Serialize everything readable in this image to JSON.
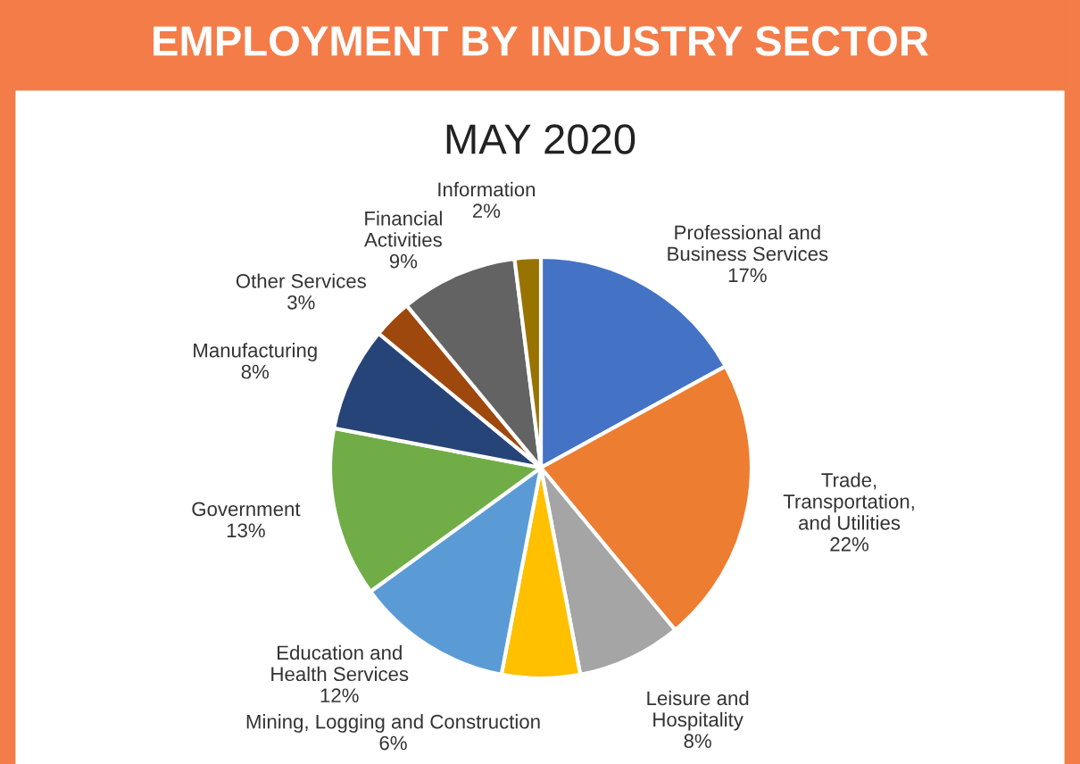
{
  "chart_data": {
    "type": "pie",
    "title": "EMPLOYMENT BY INDUSTRY SECTOR",
    "subtitle": "MAY 2020",
    "categories": [
      "Professional and\nBusiness Services",
      "Trade,\nTransportation,\nand Utilities",
      "Leisure and\nHospitality",
      "Mining, Logging and Construction",
      "Education and\nHealth Services",
      "Government",
      "Manufacturing",
      "Other Services",
      "Financial\nActivities",
      "Information"
    ],
    "values": [
      17,
      22,
      8,
      6,
      12,
      13,
      8,
      3,
      9,
      2
    ],
    "colors": [
      "#4472c4",
      "#ed7d31",
      "#a5a5a5",
      "#ffc000",
      "#5b9bd5",
      "#70ad47",
      "#264478",
      "#9e480e",
      "#636363",
      "#997300"
    ],
    "value_labels": [
      "17%",
      "22%",
      "8%",
      "6%",
      "12%",
      "13%",
      "8%",
      "3%",
      "9%",
      "2%"
    ],
    "legend": false
  }
}
